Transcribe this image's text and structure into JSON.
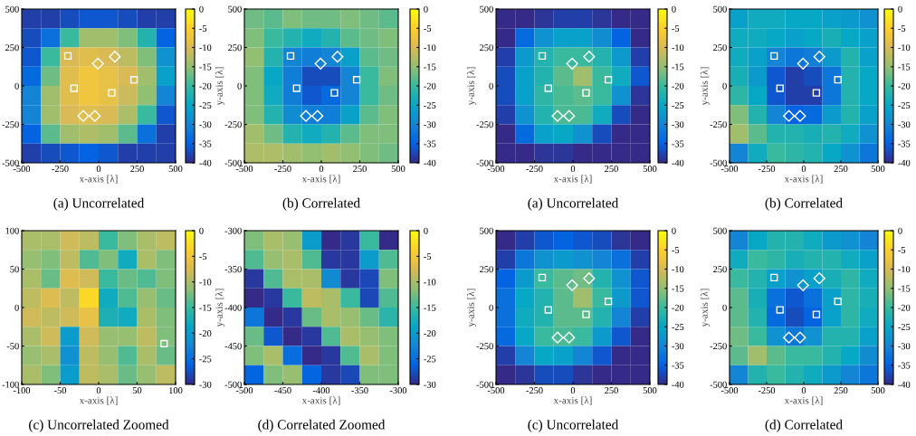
{
  "chart_data": [
    {
      "type": "heatmap",
      "title": "(a) Uncorrelated",
      "xlabel": "x-axis [λ]",
      "xlim": [
        -500,
        500
      ],
      "ylim": [
        -500,
        500
      ],
      "xticks": [
        -500,
        -250,
        0,
        250,
        500
      ],
      "yticks": [
        -500,
        -250,
        0,
        250,
        500
      ],
      "clim": [
        -40,
        0
      ],
      "cticks": [
        0,
        -5,
        -10,
        -15,
        -20,
        -25,
        -30,
        -35,
        -40
      ],
      "cells": [
        [
          -38,
          -38,
          -37,
          -36,
          -36,
          -37,
          -38,
          -38
        ],
        [
          -37,
          -33,
          -20,
          -14,
          -14,
          -16,
          -22,
          -35
        ],
        [
          -36,
          -20,
          -10,
          -9,
          -10,
          -12,
          -16,
          -28
        ],
        [
          -34,
          -17,
          -9,
          -7,
          -8,
          -10,
          -14,
          -26
        ],
        [
          -30,
          -14,
          -9,
          -7,
          -8,
          -11,
          -15,
          -30
        ],
        [
          -30,
          -14,
          -10,
          -9,
          -10,
          -13,
          -20,
          -36
        ],
        [
          -35,
          -18,
          -14,
          -13,
          -14,
          -18,
          -33,
          -38
        ],
        [
          -38,
          -37,
          -36,
          -35,
          -36,
          -38,
          -38,
          -38
        ]
      ],
      "series": [
        {
          "type": "scatter",
          "marker": "square",
          "color": "#ffffff",
          "x": [
            -200,
            -160,
            85,
            230
          ],
          "values": [
            195,
            -15,
            -45,
            40
          ]
        },
        {
          "type": "scatter",
          "marker": "diamond",
          "color": "#ffffff",
          "x": [
            -5,
            105,
            -100,
            -25
          ],
          "values": [
            145,
            190,
            -195,
            -195
          ]
        }
      ]
    },
    {
      "type": "heatmap",
      "title": "(b) Correlated",
      "xlabel": "x-axis [λ]",
      "ylabel": "y-axis [λ]",
      "xlim": [
        -500,
        500
      ],
      "ylim": [
        -500,
        500
      ],
      "xticks": [
        -500,
        -250,
        0,
        250,
        500
      ],
      "yticks": [
        -500,
        -250,
        0,
        250,
        500
      ],
      "clim": [
        -40,
        0
      ],
      "cticks": [
        0,
        -5,
        -10,
        -15,
        -20,
        -25,
        -30,
        -35,
        -40
      ],
      "cells": [
        [
          -17,
          -18,
          -16,
          -17,
          -17,
          -16,
          -17,
          -18
        ],
        [
          -16,
          -20,
          -22,
          -24,
          -22,
          -18,
          -17,
          -16
        ],
        [
          -15,
          -22,
          -30,
          -31,
          -30,
          -26,
          -18,
          -17
        ],
        [
          -16,
          -25,
          -31,
          -37,
          -37,
          -30,
          -20,
          -16
        ],
        [
          -16,
          -24,
          -31,
          -36,
          -34,
          -30,
          -20,
          -17
        ],
        [
          -16,
          -22,
          -29,
          -31,
          -31,
          -26,
          -18,
          -16
        ],
        [
          -14,
          -17,
          -22,
          -24,
          -22,
          -18,
          -16,
          -16
        ],
        [
          -13,
          -13,
          -14,
          -15,
          -14,
          -15,
          -16,
          -17
        ]
      ],
      "series": [
        {
          "type": "scatter",
          "marker": "square",
          "color": "#ffffff",
          "x": [
            -200,
            -160,
            85,
            230
          ],
          "values": [
            195,
            -15,
            -45,
            40
          ]
        },
        {
          "type": "scatter",
          "marker": "diamond",
          "color": "#ffffff",
          "x": [
            -5,
            105,
            -100,
            -25
          ],
          "values": [
            145,
            190,
            -195,
            -195
          ]
        }
      ]
    },
    {
      "type": "heatmap",
      "title": "(a) Uncorrelated",
      "xlabel": "x-axis [λ]",
      "ylabel": "y-axis [λ]",
      "xlim": [
        -500,
        500
      ],
      "ylim": [
        -500,
        500
      ],
      "xticks": [
        -500,
        -250,
        0,
        250,
        500
      ],
      "yticks": [
        -500,
        -250,
        0,
        250,
        500
      ],
      "clim": [
        -40,
        0
      ],
      "cticks": [
        0,
        -5,
        -10,
        -15,
        -20,
        -25,
        -30,
        -35,
        -40
      ],
      "cells": [
        [
          -40,
          -40,
          -39,
          -38,
          -38,
          -39,
          -40,
          -40
        ],
        [
          -40,
          -34,
          -28,
          -26,
          -26,
          -29,
          -35,
          -40
        ],
        [
          -38,
          -27,
          -22,
          -20,
          -20,
          -22,
          -27,
          -38
        ],
        [
          -37,
          -26,
          -22,
          -18,
          -14,
          -20,
          -24,
          -36
        ],
        [
          -37,
          -26,
          -21,
          -19,
          -18,
          -20,
          -28,
          -39
        ],
        [
          -38,
          -28,
          -22,
          -19,
          -19,
          -24,
          -37,
          -40
        ],
        [
          -40,
          -34,
          -26,
          -25,
          -28,
          -37,
          -40,
          -40
        ],
        [
          -40,
          -40,
          -39,
          -39,
          -40,
          -40,
          -40,
          -40
        ]
      ],
      "series": [
        {
          "type": "scatter",
          "marker": "square",
          "color": "#ffffff",
          "x": [
            -200,
            -160,
            85,
            230
          ],
          "values": [
            195,
            -15,
            -45,
            40
          ]
        },
        {
          "type": "scatter",
          "marker": "diamond",
          "color": "#ffffff",
          "x": [
            -5,
            105,
            -100,
            -25
          ],
          "values": [
            145,
            190,
            -195,
            -195
          ]
        }
      ]
    },
    {
      "type": "heatmap",
      "title": "(b) Correlated",
      "xlabel": "x-axis [λ]",
      "ylabel": "y-axis [λ]",
      "xlim": [
        -500,
        500
      ],
      "ylim": [
        -500,
        500
      ],
      "xticks": [
        -500,
        -250,
        0,
        250,
        500
      ],
      "yticks": [
        -500,
        -250,
        0,
        250,
        500
      ],
      "clim": [
        -40,
        0
      ],
      "cticks": [
        0,
        -5,
        -10,
        -15,
        -20,
        -25,
        -30,
        -35,
        -40
      ],
      "cells": [
        [
          -26,
          -24,
          -24,
          -25,
          -25,
          -26,
          -27,
          -28
        ],
        [
          -24,
          -24,
          -25,
          -26,
          -25,
          -23,
          -25,
          -26
        ],
        [
          -24,
          -26,
          -30,
          -32,
          -31,
          -27,
          -22,
          -26
        ],
        [
          -23,
          -27,
          -36,
          -38,
          -37,
          -32,
          -22,
          -25
        ],
        [
          -21,
          -25,
          -36,
          -38,
          -38,
          -32,
          -22,
          -25
        ],
        [
          -16,
          -22,
          -30,
          -35,
          -34,
          -27,
          -22,
          -26
        ],
        [
          -14,
          -18,
          -22,
          -22,
          -23,
          -22,
          -24,
          -28
        ],
        [
          -30,
          -24,
          -20,
          -21,
          -22,
          -25,
          -28,
          -32
        ]
      ],
      "series": [
        {
          "type": "scatter",
          "marker": "square",
          "color": "#ffffff",
          "x": [
            -200,
            -160,
            85,
            230
          ],
          "values": [
            195,
            -15,
            -45,
            40
          ]
        },
        {
          "type": "scatter",
          "marker": "diamond",
          "color": "#ffffff",
          "x": [
            -5,
            105,
            -100,
            -25
          ],
          "values": [
            145,
            190,
            -195,
            -195
          ]
        }
      ]
    },
    {
      "type": "heatmap",
      "title": "(c) Uncorrelated Zoomed",
      "xlabel": "x-axis [λ]",
      "xlim": [
        -100,
        100
      ],
      "ylim": [
        -100,
        100
      ],
      "xticks": [
        -100,
        -50,
        0,
        50,
        100
      ],
      "yticks": [
        -100,
        -50,
        0,
        50,
        100
      ],
      "clim": [
        -30,
        0
      ],
      "cticks": [
        0,
        -5,
        -10,
        -15,
        -20,
        -25,
        -30
      ],
      "cells": [
        [
          -10,
          -10,
          -8,
          -9,
          -15,
          -12,
          -10,
          -9
        ],
        [
          -11,
          -12,
          -9,
          -14,
          -12,
          -18,
          -10,
          -12
        ],
        [
          -10,
          -13,
          -7,
          -8,
          -15,
          -13,
          -14,
          -12
        ],
        [
          -9,
          -7,
          -9,
          -3,
          -18,
          -14,
          -11,
          -13
        ],
        [
          -8,
          -9,
          -8,
          -6,
          -17,
          -18,
          -10,
          -12
        ],
        [
          -10,
          -8,
          -20,
          -8,
          -11,
          -11,
          -9,
          -12
        ],
        [
          -11,
          -10,
          -21,
          -9,
          -11,
          -14,
          -10,
          -13
        ],
        [
          -10,
          -12,
          -20,
          -9,
          -10,
          -13,
          -11,
          -9
        ]
      ],
      "series": [
        {
          "type": "scatter",
          "marker": "square",
          "color": "#ffffff",
          "x": [
            85
          ],
          "values": [
            -47
          ]
        }
      ]
    },
    {
      "type": "heatmap",
      "title": "(d) Correlated Zoomed",
      "xlabel": "x-axis [λ]",
      "ylabel": "y-axis [λ]",
      "xlim": [
        -500,
        -300
      ],
      "ylim": [
        -500,
        -300
      ],
      "xticks": [
        -500,
        -450,
        -400,
        -350,
        -300
      ],
      "yticks": [
        -500,
        -450,
        -400,
        -350,
        -300
      ],
      "clim": [
        -30,
        0
      ],
      "cticks": [
        0,
        -5,
        -10,
        -15,
        -20,
        -25,
        -30
      ],
      "cells": [
        [
          -12,
          -10,
          -11,
          -20,
          -30,
          -29,
          -15,
          -30
        ],
        [
          -14,
          -11,
          -10,
          -14,
          -29,
          -29,
          -20,
          -14
        ],
        [
          -29,
          -14,
          -10,
          -10,
          -22,
          -29,
          -28,
          -12
        ],
        [
          -30,
          -29,
          -15,
          -9,
          -10,
          -15,
          -28,
          -14
        ],
        [
          -24,
          -30,
          -29,
          -13,
          -10,
          -11,
          -13,
          -16
        ],
        [
          -13,
          -27,
          -30,
          -29,
          -14,
          -10,
          -11,
          -12
        ],
        [
          -12,
          -10,
          -25,
          -30,
          -29,
          -14,
          -10,
          -12
        ],
        [
          -26,
          -12,
          -11,
          -26,
          -29,
          -28,
          -12,
          -12
        ]
      ]
    },
    {
      "type": "heatmap",
      "title": "(c) Uncorrelated",
      "xlabel": "x-axis [λ]",
      "ylabel": "y-axis [λ]",
      "xlim": [
        -500,
        500
      ],
      "ylim": [
        -500,
        500
      ],
      "xticks": [
        -500,
        -250,
        0,
        250,
        500
      ],
      "yticks": [
        -500,
        -250,
        0,
        250,
        500
      ],
      "clim": [
        -40,
        0
      ],
      "cticks": [
        0,
        -5,
        -10,
        -15,
        -20,
        -25,
        -30,
        -35,
        -40
      ],
      "cells": [
        [
          -40,
          -38,
          -36,
          -35,
          -36,
          -37,
          -39,
          -40
        ],
        [
          -38,
          -32,
          -28,
          -27,
          -28,
          -30,
          -33,
          -38
        ],
        [
          -35,
          -27,
          -20,
          -18,
          -17,
          -22,
          -28,
          -36
        ],
        [
          -33,
          -25,
          -22,
          -18,
          -14,
          -20,
          -27,
          -36
        ],
        [
          -33,
          -24,
          -22,
          -18,
          -18,
          -22,
          -30,
          -38
        ],
        [
          -34,
          -25,
          -20,
          -19,
          -20,
          -27,
          -36,
          -40
        ],
        [
          -38,
          -30,
          -25,
          -26,
          -30,
          -36,
          -40,
          -40
        ],
        [
          -40,
          -39,
          -37,
          -37,
          -39,
          -40,
          -40,
          -40
        ]
      ],
      "series": [
        {
          "type": "scatter",
          "marker": "square",
          "color": "#ffffff",
          "x": [
            -200,
            -160,
            85,
            230
          ],
          "values": [
            195,
            -15,
            -45,
            40
          ]
        },
        {
          "type": "scatter",
          "marker": "diamond",
          "color": "#ffffff",
          "x": [
            -5,
            105,
            -100,
            -25
          ],
          "values": [
            145,
            190,
            -195,
            -195
          ]
        }
      ]
    },
    {
      "type": "heatmap",
      "title": "(d) Correlated",
      "xlabel": "x-axis [λ]",
      "ylabel": "y-axis [λ]",
      "xlim": [
        -500,
        500
      ],
      "ylim": [
        -500,
        500
      ],
      "xticks": [
        -500,
        -250,
        0,
        250,
        500
      ],
      "yticks": [
        -500,
        -250,
        0,
        250,
        500
      ],
      "clim": [
        -40,
        0
      ],
      "cticks": [
        0,
        -5,
        -10,
        -15,
        -20,
        -25,
        -30,
        -35,
        -40
      ],
      "cells": [
        [
          -30,
          -25,
          -22,
          -22,
          -24,
          -27,
          -28,
          -30
        ],
        [
          -24,
          -20,
          -21,
          -23,
          -22,
          -22,
          -24,
          -26
        ],
        [
          -20,
          -22,
          -26,
          -28,
          -26,
          -23,
          -21,
          -24
        ],
        [
          -18,
          -23,
          -33,
          -36,
          -33,
          -26,
          -21,
          -23
        ],
        [
          -18,
          -22,
          -34,
          -37,
          -35,
          -26,
          -21,
          -24
        ],
        [
          -17,
          -20,
          -28,
          -32,
          -28,
          -22,
          -22,
          -26
        ],
        [
          -18,
          -14,
          -18,
          -20,
          -20,
          -22,
          -25,
          -29
        ],
        [
          -30,
          -22,
          -20,
          -22,
          -24,
          -27,
          -30,
          -32
        ]
      ],
      "series": [
        {
          "type": "scatter",
          "marker": "square",
          "color": "#ffffff",
          "x": [
            -200,
            -160,
            85,
            230
          ],
          "values": [
            195,
            -15,
            -45,
            40
          ]
        },
        {
          "type": "scatter",
          "marker": "diamond",
          "color": "#ffffff",
          "x": [
            -5,
            105,
            -100,
            -25
          ],
          "values": [
            145,
            190,
            -195,
            -195
          ]
        }
      ]
    }
  ]
}
